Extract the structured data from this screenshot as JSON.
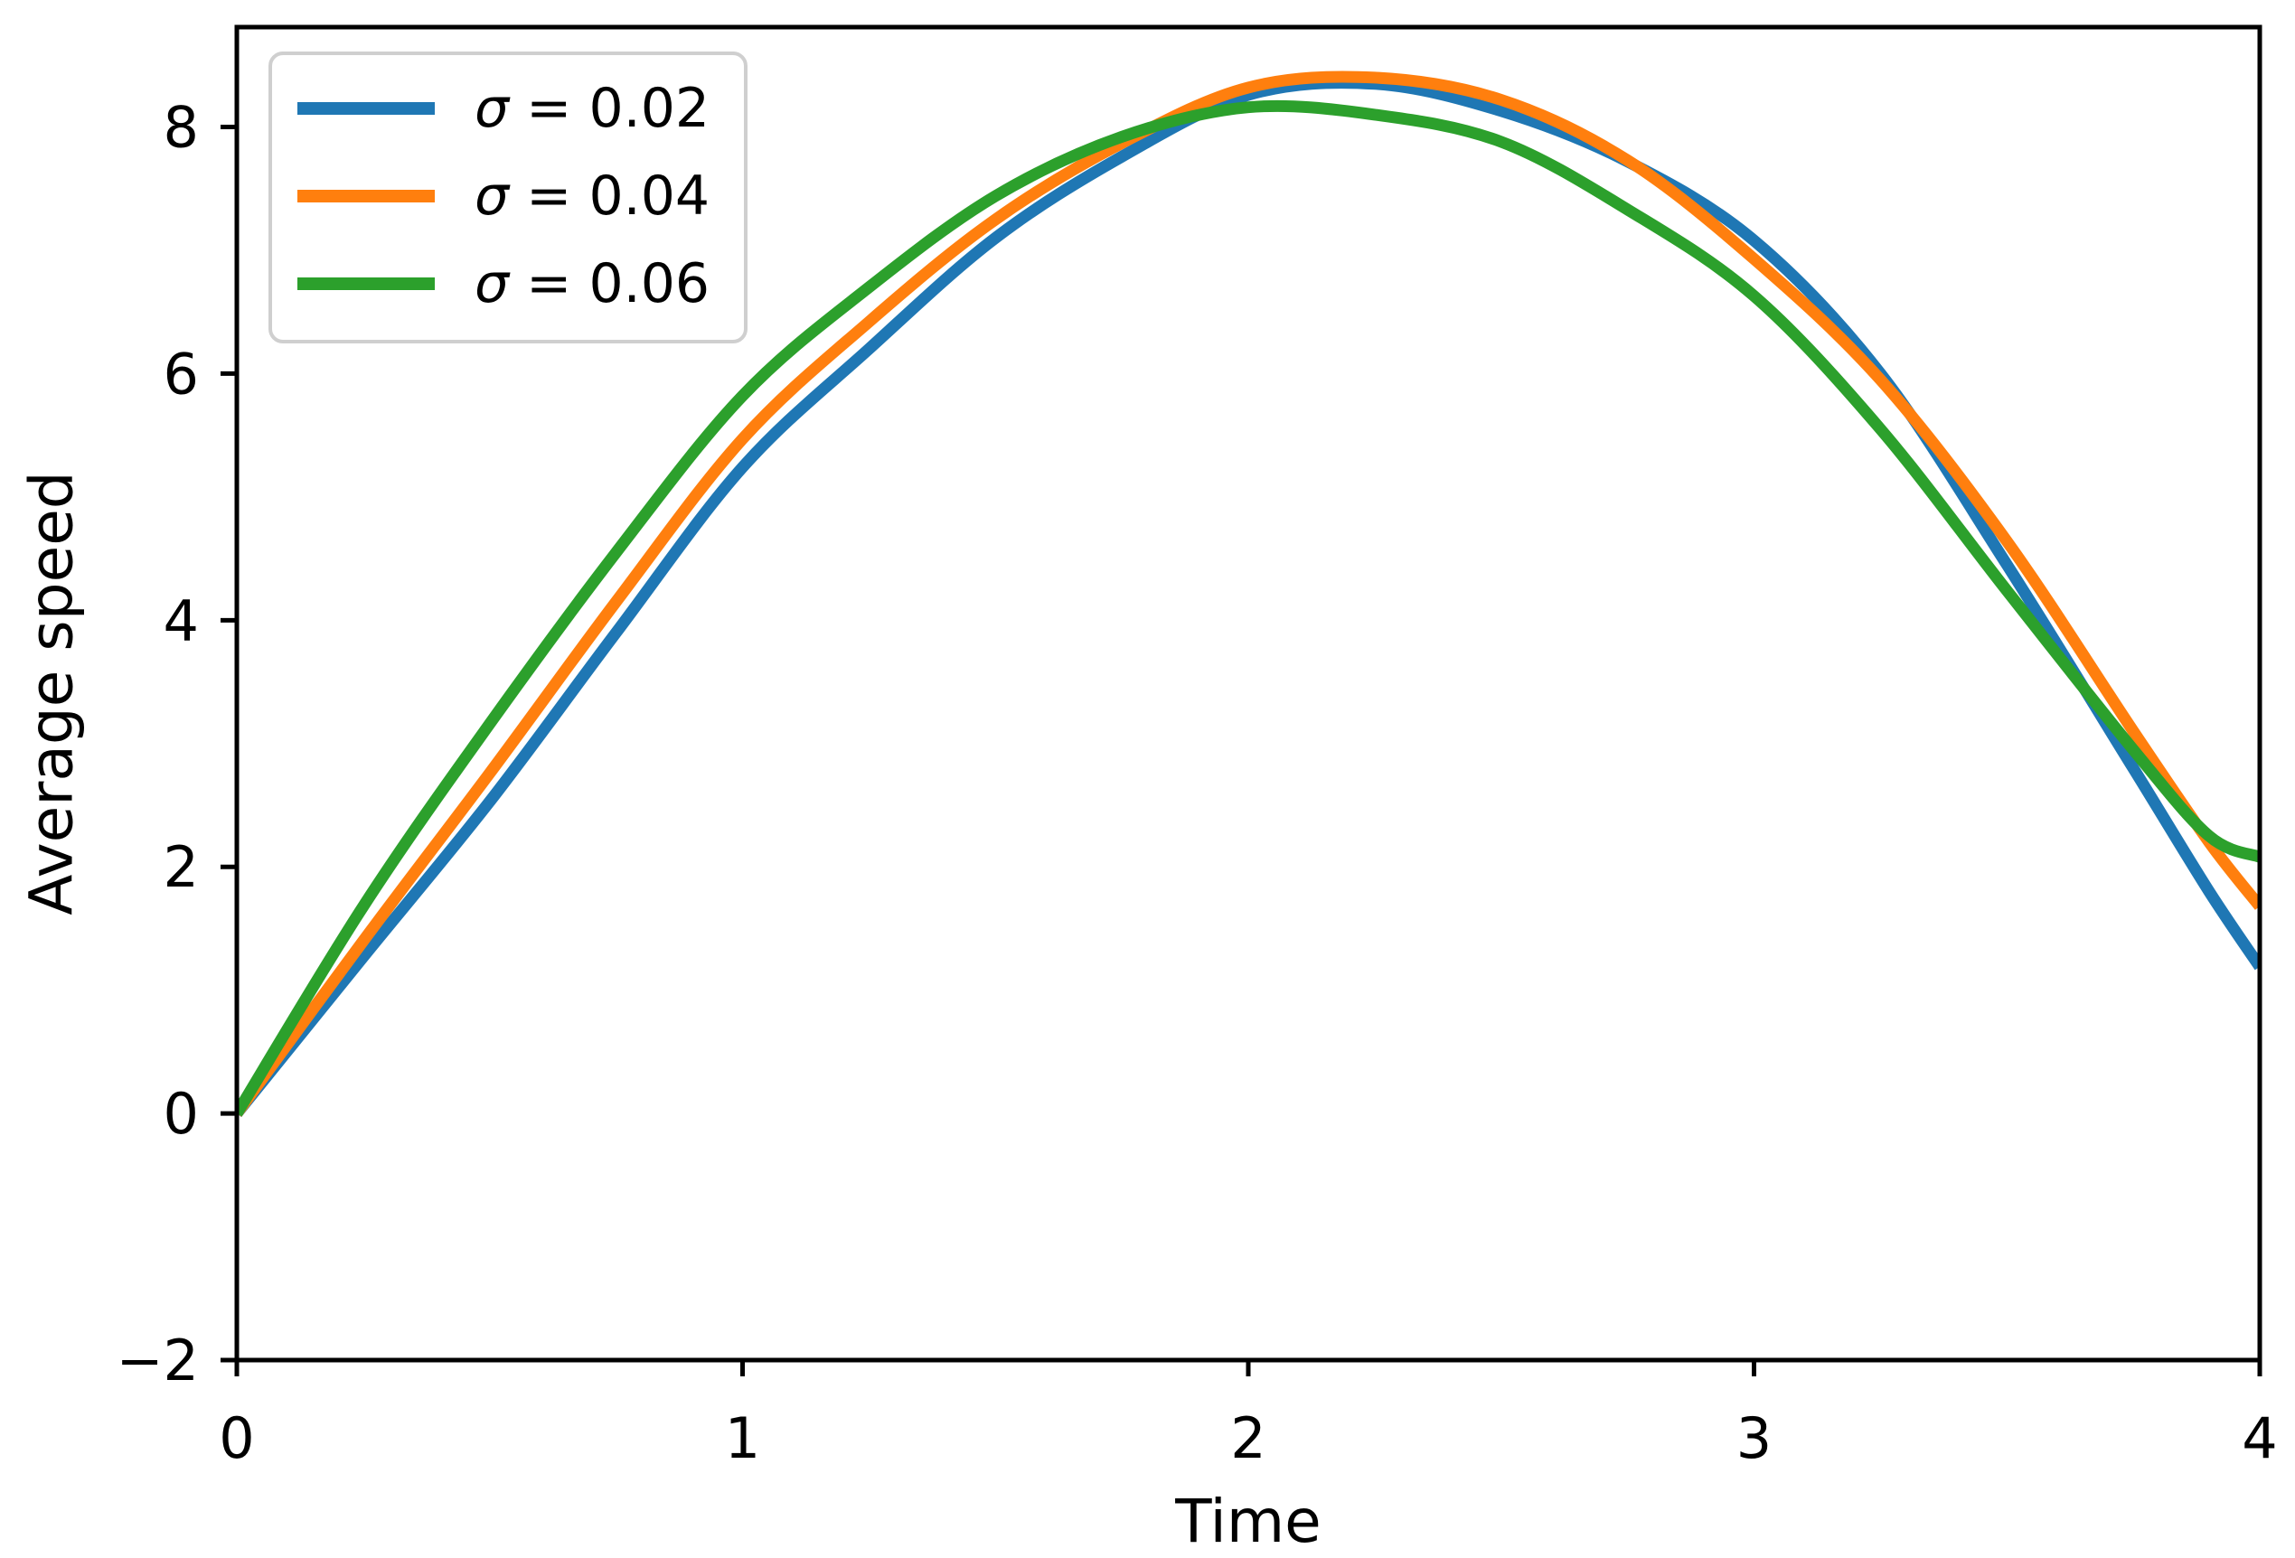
{
  "figure": {
    "background": "#ffffff",
    "title": ""
  },
  "chart_data": {
    "type": "line",
    "title": "",
    "xlabel": "Time",
    "ylabel": "Average speed",
    "x": [
      0,
      0.25,
      0.5,
      0.75,
      1,
      1.25,
      1.5,
      1.75,
      2,
      2.25,
      2.5,
      2.75,
      3,
      3.25,
      3.5,
      3.75,
      3.9,
      4
    ],
    "series": [
      {
        "name": "σ = 0.02",
        "color": "#1f77b4",
        "values": [
          0,
          1.27,
          2.53,
          3.9,
          5.24,
          6.2,
          7.1,
          7.76,
          8.26,
          8.35,
          8.13,
          7.72,
          7.08,
          6.0,
          4.45,
          2.8,
          1.8,
          1.19
        ]
      },
      {
        "name": "σ = 0.04",
        "color": "#ff7f0e",
        "values": [
          0,
          1.4,
          2.76,
          4.15,
          5.47,
          6.42,
          7.25,
          7.87,
          8.32,
          8.4,
          8.22,
          7.73,
          6.93,
          5.95,
          4.64,
          3.1,
          2.2,
          1.68
        ]
      },
      {
        "name": "σ = 0.06",
        "color": "#2ca02c",
        "values": [
          0,
          1.68,
          3.16,
          4.55,
          5.82,
          6.7,
          7.44,
          7.92,
          8.16,
          8.1,
          7.88,
          7.33,
          6.63,
          5.55,
          4.24,
          2.95,
          2.25,
          2.08
        ]
      }
    ],
    "xlim": [
      0,
      4
    ],
    "ylim": [
      -2,
      8.81
    ],
    "xticks": [
      0,
      1,
      2,
      3,
      4
    ],
    "xtick_labels": [
      "0",
      "1",
      "2",
      "3",
      "4"
    ],
    "yticks": [
      -2,
      0,
      2,
      4,
      6,
      8
    ],
    "ytick_labels": [
      "−2",
      "0",
      "2",
      "4",
      "6",
      "8"
    ],
    "grid": false,
    "legend": {
      "position": "upper-left",
      "border_color": "#cfcfcf",
      "background": "#ffffff",
      "entries": [
        "σ = 0.02",
        "σ = 0.04",
        "σ = 0.06"
      ]
    },
    "axis": {
      "spine_color": "#000000",
      "tick_color": "#000000",
      "label_color": "#000000"
    }
  }
}
